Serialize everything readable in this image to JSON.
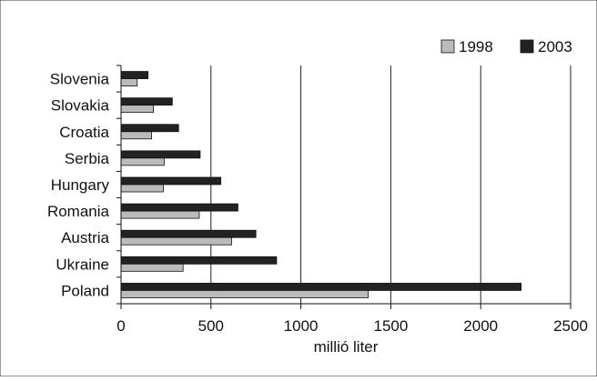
{
  "chart_data": {
    "type": "bar",
    "orientation": "horizontal",
    "categories": [
      "Slovenia",
      "Slovakia",
      "Croatia",
      "Serbia",
      "Hungary",
      "Romania",
      "Austria",
      "Ukraine",
      "Poland"
    ],
    "series": [
      {
        "name": "1998",
        "color": "#bbbbbb",
        "values": [
          90,
          180,
          170,
          240,
          235,
          435,
          615,
          345,
          1375
        ]
      },
      {
        "name": "2003",
        "color": "#222222",
        "values": [
          150,
          285,
          320,
          440,
          555,
          650,
          750,
          865,
          2225
        ]
      }
    ],
    "xlabel": "millió liter",
    "ylabel": "",
    "xlim": [
      0,
      2500
    ],
    "xticks": [
      "0",
      "500",
      "1000",
      "1500",
      "2000",
      "2500"
    ],
    "grid": "vertical",
    "legend_position": "top-right"
  }
}
